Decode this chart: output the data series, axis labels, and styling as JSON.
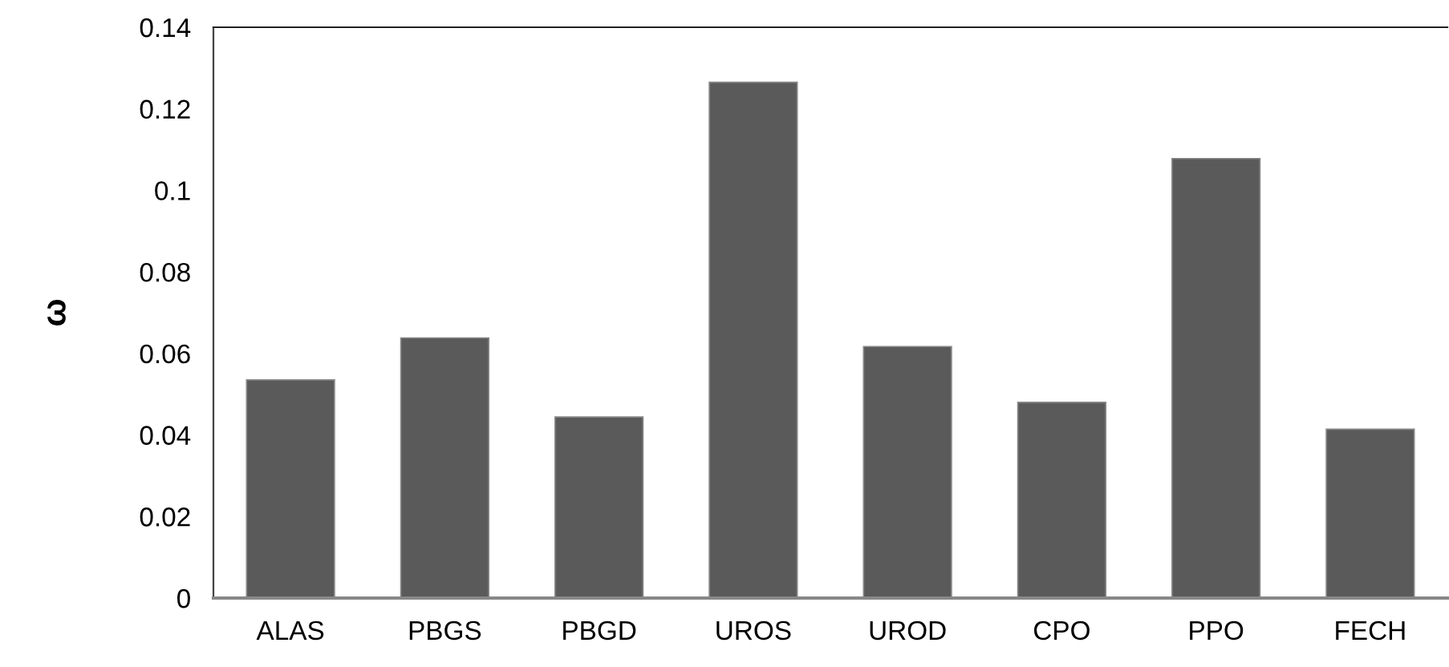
{
  "chart_data": {
    "type": "bar",
    "ylabel": "ω",
    "categories": [
      "ALAS",
      "PBGS",
      "PBGD",
      "UROS",
      "UROD",
      "CPO",
      "PPO",
      "FECH"
    ],
    "values": [
      0.0535,
      0.0638,
      0.0444,
      0.1265,
      0.0617,
      0.048,
      0.1078,
      0.0414
    ],
    "color": "#5a5a5a",
    "ylim": [
      0,
      0.14
    ],
    "yticks": [
      0,
      0.02,
      0.04,
      0.06,
      0.08,
      0.1,
      0.12,
      0.14
    ],
    "grid": false,
    "legend": false
  }
}
